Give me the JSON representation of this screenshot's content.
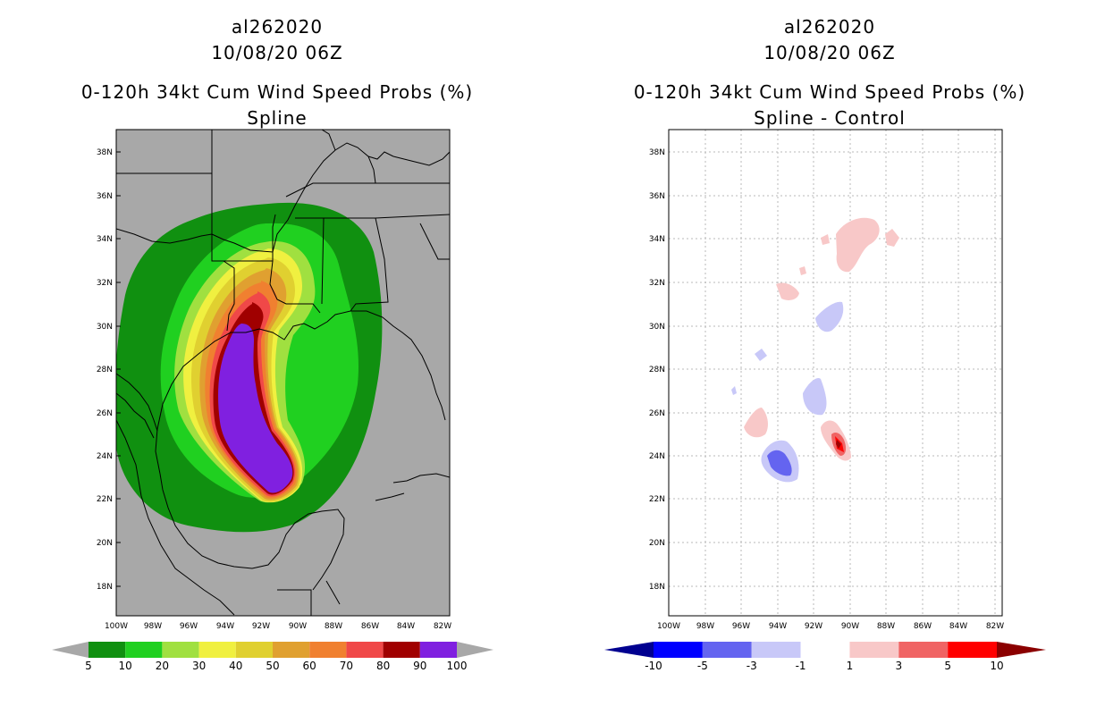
{
  "left_panel": {
    "storm_id": "al262020",
    "datetime": "10/08/20 06Z",
    "product": "0-120h 34kt Cum Wind Speed Probs (%)",
    "subtitle": "Spline",
    "colorbar": {
      "colors": [
        "#109010",
        "#20d020",
        "#a0e040",
        "#f0f040",
        "#e0d030",
        "#e0a030",
        "#f08030",
        "#f04848",
        "#a00000",
        "#8020e0"
      ],
      "labels": [
        "5",
        "10",
        "20",
        "30",
        "40",
        "50",
        "60",
        "70",
        "80",
        "90",
        "100"
      ]
    }
  },
  "right_panel": {
    "storm_id": "al262020",
    "datetime": "10/08/20 06Z",
    "product": "0-120h 34kt Cum Wind Speed Probs (%)",
    "subtitle": "Spline - Control",
    "colorbar": {
      "colors": [
        "#0000ff",
        "#6464f0",
        "#c8c8f8",
        "#ffffff",
        "#f8c8c8",
        "#f06464",
        "#ff0000"
      ],
      "labels": [
        "-10",
        "-5",
        "-3",
        "-1",
        "1",
        "3",
        "5",
        "10"
      ]
    }
  },
  "axes": {
    "lat_labels": [
      "38N",
      "36N",
      "34N",
      "32N",
      "30N",
      "28N",
      "26N",
      "24N",
      "22N",
      "20N",
      "18N"
    ],
    "lon_labels": [
      "100W",
      "98W",
      "96W",
      "94W",
      "92W",
      "90W",
      "88W",
      "86W",
      "84W",
      "82W"
    ]
  }
}
